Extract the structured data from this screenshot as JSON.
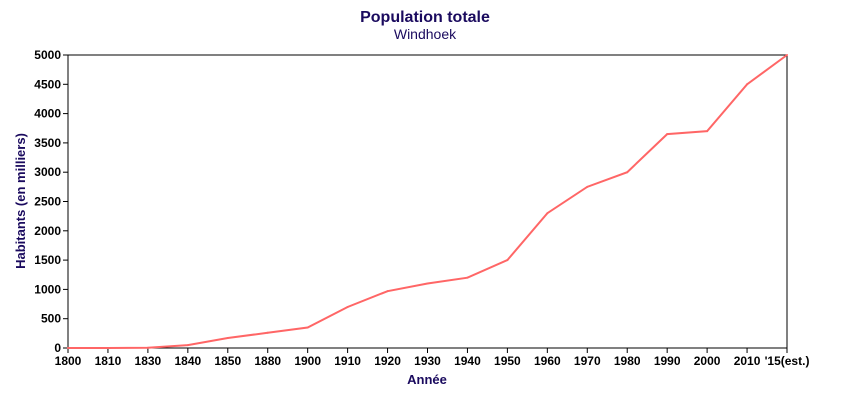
{
  "chart_data": {
    "type": "line",
    "title": "Population totale",
    "subtitle": "Windhoek",
    "xlabel": "Année",
    "ylabel": "Habitants (en milliers)",
    "categories": [
      "1800",
      "1810",
      "1830",
      "1840",
      "1850",
      "1880",
      "1900",
      "1910",
      "1920",
      "1930",
      "1940",
      "1950",
      "1960",
      "1970",
      "1980",
      "1990",
      "2000",
      "2010",
      "'15(est.)"
    ],
    "series": [
      {
        "name": "Windhoek",
        "color": "#ff6666",
        "values": [
          0,
          0,
          5,
          50,
          170,
          260,
          350,
          700,
          970,
          1100,
          1200,
          1500,
          2300,
          2750,
          3000,
          3650,
          3700,
          4500,
          5000
        ]
      }
    ],
    "ylim": [
      0,
      5000
    ],
    "yticks": [
      0,
      500,
      1000,
      1500,
      2000,
      2500,
      3000,
      3500,
      4000,
      4500,
      5000
    ],
    "grid": false,
    "legend": "none"
  }
}
